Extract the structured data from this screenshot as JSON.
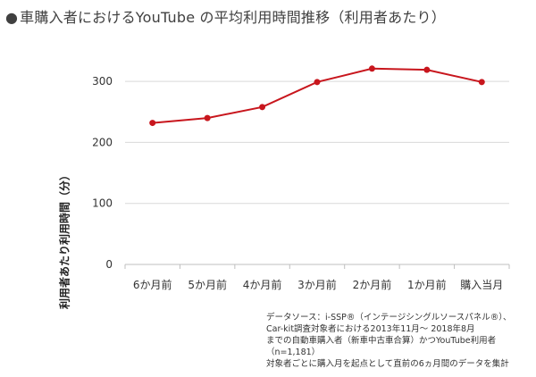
{
  "title": "車購入者におけるYouTube の平均利用時間推移（利用者あたり）",
  "bullet": "●",
  "chart_data": {
    "type": "line",
    "title": "車購入者におけるYouTube の平均利用時間推移（利用者あたり）",
    "xlabel": "",
    "ylabel": "利用者あたり利用時間（分）",
    "categories": [
      "6か月前",
      "5か月前",
      "4か月前",
      "3か月前",
      "2か月前",
      "1か月前",
      "購入当月"
    ],
    "series": [
      {
        "values": [
          232,
          240,
          258,
          299,
          321,
          319,
          299
        ],
        "color": "#c8161d"
      }
    ],
    "yticks": [
      0,
      100,
      200,
      300
    ],
    "ylim": [
      0,
      350
    ],
    "grid": true,
    "legend": "none"
  },
  "notes": [
    "データソース：i-SSP®（インテージシングルソースパネル®）、",
    "Car-kit調査対象者における2013年11月～ 2018年8月",
    "までの自動車購入者（新車中古車合算）かつYouTube利用者",
    "（n=1,181）",
    "対象者ごとに購入月を起点として直前の6ヵ月間のデータを集計"
  ]
}
